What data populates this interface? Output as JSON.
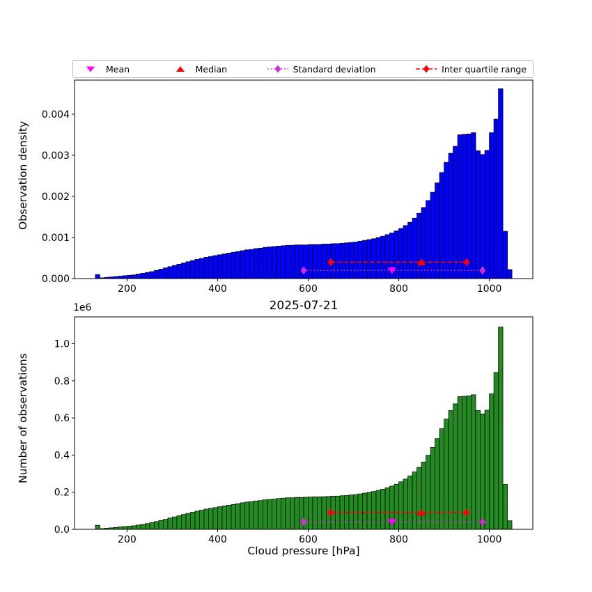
{
  "figure": {
    "background": "#ffffff",
    "title": "2025-07-21",
    "xlabel": "Cloud pressure [hPa]",
    "offset_label": "1e6"
  },
  "legend": {
    "items": [
      {
        "label": "Mean",
        "marker": "triangle-down",
        "line": "none",
        "color": "#FF00FF",
        "icon_name": "mean-triangle-down-icon"
      },
      {
        "label": "Median",
        "marker": "triangle-up",
        "line": "none",
        "color": "#FF0000",
        "icon_name": "median-triangle-up-icon"
      },
      {
        "label": "Standard deviation",
        "marker": "diamond",
        "line": "dotted",
        "color": "#D02FD0",
        "icon_name": "standard-deviation-diamond-icon"
      },
      {
        "label": "Inter quartile range",
        "marker": "diamond",
        "line": "dashed",
        "color": "#FF0000",
        "icon_name": "inter-quartile-range-diamond-icon"
      }
    ]
  },
  "chart_data": [
    {
      "type": "bar",
      "name": "observation-density-histogram",
      "ylabel": "Observation density",
      "bar_color": "#0000FF",
      "edge_color": "#000000",
      "bin_start": 130,
      "bin_width": 10,
      "values": [
        0.0001,
        2e-05,
        3e-05,
        4e-05,
        5e-05,
        6e-05,
        7e-05,
        8e-05,
        9e-05,
        0.00011,
        0.00013,
        0.00015,
        0.00017,
        0.0002,
        0.00023,
        0.00026,
        0.00029,
        0.00032,
        0.00035,
        0.00038,
        0.00041,
        0.00044,
        0.00047,
        0.00049,
        0.00052,
        0.00054,
        0.00056,
        0.00058,
        0.0006,
        0.00062,
        0.00064,
        0.00066,
        0.00068,
        0.0007,
        0.00071,
        0.00073,
        0.00074,
        0.00076,
        0.00077,
        0.00078,
        0.00079,
        0.0008,
        0.00081,
        0.00081,
        0.00082,
        0.00082,
        0.00082,
        0.00083,
        0.00083,
        0.00083,
        0.00084,
        0.00084,
        0.00085,
        0.00085,
        0.00086,
        0.00087,
        0.00088,
        0.00089,
        0.00091,
        0.00093,
        0.00095,
        0.00097,
        0.001,
        0.00103,
        0.00107,
        0.00111,
        0.00116,
        0.00122,
        0.00129,
        0.00137,
        0.00147,
        0.00159,
        0.00173,
        0.0019,
        0.0021,
        0.00233,
        0.00258,
        0.00283,
        0.00305,
        0.00322,
        0.0035,
        0.00351,
        0.00352,
        0.00355,
        0.00311,
        0.00302,
        0.00312,
        0.00355,
        0.00388,
        0.00462,
        0.00115,
        0.00022
      ],
      "xlim": [
        84,
        1096
      ],
      "ylim": [
        0,
        0.00483
      ],
      "xticks": [
        200,
        400,
        600,
        800,
        1000
      ],
      "yticks": [
        0,
        0.001,
        0.002,
        0.003,
        0.004
      ],
      "ytick_labels": [
        "0.000",
        "0.001",
        "0.002",
        "0.003",
        "0.004"
      ],
      "stats": {
        "mean": 785,
        "median": 850,
        "std_range": [
          590,
          985
        ],
        "iqr_range": [
          650,
          950
        ],
        "std_line_y": 0.0002,
        "iqr_line_y": 0.0004,
        "mean_color": "#FF00FF",
        "median_color": "#FF0000",
        "std_color": "#D02FD0",
        "iqr_color": "#FF0000"
      }
    },
    {
      "type": "bar",
      "name": "observation-count-histogram",
      "ylabel": "Number of observations",
      "y_unit_multiplier": "1e6",
      "bar_color": "#228B22",
      "edge_color": "#000000",
      "bin_start": 130,
      "bin_width": 10,
      "values": [
        0.022,
        0.004,
        0.006,
        0.008,
        0.01,
        0.013,
        0.015,
        0.017,
        0.019,
        0.023,
        0.027,
        0.031,
        0.036,
        0.042,
        0.048,
        0.054,
        0.061,
        0.067,
        0.073,
        0.08,
        0.086,
        0.092,
        0.098,
        0.103,
        0.109,
        0.113,
        0.117,
        0.122,
        0.126,
        0.13,
        0.134,
        0.138,
        0.143,
        0.147,
        0.149,
        0.153,
        0.155,
        0.159,
        0.161,
        0.163,
        0.166,
        0.168,
        0.17,
        0.17,
        0.172,
        0.172,
        0.173,
        0.174,
        0.175,
        0.175,
        0.176,
        0.177,
        0.179,
        0.179,
        0.181,
        0.182,
        0.185,
        0.187,
        0.191,
        0.195,
        0.199,
        0.204,
        0.21,
        0.216,
        0.224,
        0.233,
        0.243,
        0.256,
        0.271,
        0.288,
        0.309,
        0.334,
        0.363,
        0.399,
        0.441,
        0.489,
        0.542,
        0.594,
        0.64,
        0.676,
        0.715,
        0.717,
        0.719,
        0.725,
        0.64,
        0.622,
        0.642,
        0.73,
        0.845,
        1.09,
        0.242,
        0.046
      ],
      "xlim": [
        84,
        1096
      ],
      "ylim": [
        0,
        1.1445
      ],
      "xticks": [
        200,
        400,
        600,
        800,
        1000
      ],
      "yticks": [
        0,
        0.2,
        0.4,
        0.6,
        0.8,
        1.0
      ],
      "ytick_labels": [
        "0.0",
        "0.2",
        "0.4",
        "0.6",
        "0.8",
        "1.0"
      ],
      "stats": {
        "mean": 785,
        "median": 850,
        "std_range": [
          590,
          985
        ],
        "iqr_range": [
          650,
          950
        ],
        "std_line_y": 0.04,
        "iqr_line_y": 0.09,
        "mean_color": "#FF00FF",
        "median_color": "#FF0000",
        "std_color": "#D02FD0",
        "iqr_color": "#FF0000"
      }
    }
  ]
}
